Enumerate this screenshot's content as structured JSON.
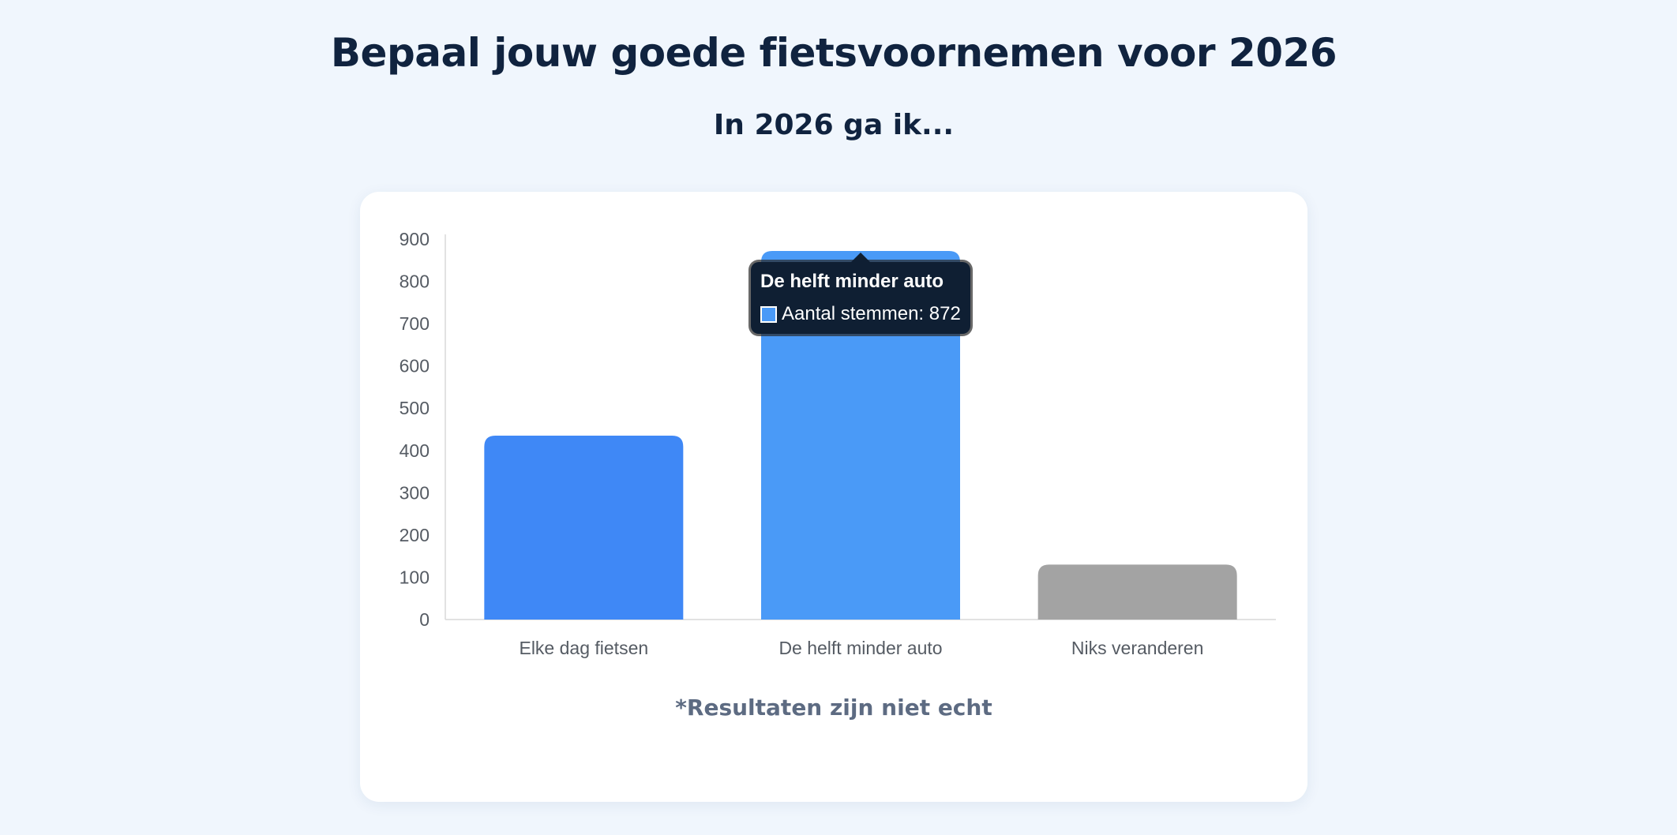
{
  "header": {
    "title": "Bepaal jouw goede fietsvoornemen voor 2026",
    "subtitle": "In 2026 ga ik..."
  },
  "chart_data": {
    "type": "bar",
    "categories": [
      "Elke dag fietsen",
      "De helft minder auto",
      "Niks veranderen"
    ],
    "series": [
      {
        "name": "Aantal stemmen",
        "values": [
          435,
          872,
          130
        ]
      }
    ],
    "bar_colors": [
      "#3f88f6",
      "#4a9af7",
      "#a3a3a3"
    ],
    "ylim": [
      0,
      900
    ],
    "yticks": [
      0,
      100,
      200,
      300,
      400,
      500,
      600,
      700,
      800,
      900
    ],
    "grid": false,
    "legend": "none"
  },
  "tooltip": {
    "title": "De helft minder auto",
    "label": "Aantal stemmen: 872",
    "swatch_color": "#4a9af7",
    "category_index": 1
  },
  "footnote": "*Resultaten zijn niet echt"
}
